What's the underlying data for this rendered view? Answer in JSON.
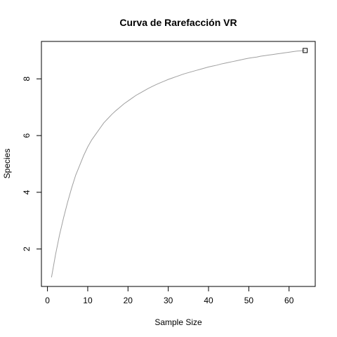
{
  "chart_data": {
    "type": "line",
    "title": "Curva de Rarefacción VR",
    "xlabel": "Sample Size",
    "ylabel": "Species",
    "xlim": [
      -1.5,
      66.5
    ],
    "ylim": [
      0.68,
      9.32
    ],
    "xticks": [
      0,
      10,
      20,
      30,
      40,
      50,
      60
    ],
    "yticks": [
      2,
      4,
      6,
      8
    ],
    "grid": false,
    "line_color": "#a0a0a0",
    "series": [
      {
        "x": [
          1,
          2,
          3,
          4,
          5,
          6,
          7,
          8,
          9,
          10,
          11,
          12,
          13,
          14,
          15,
          16,
          17,
          18,
          19,
          20,
          21,
          22,
          23,
          24,
          25,
          26,
          27,
          28,
          29,
          30,
          31,
          32,
          33,
          34,
          35,
          36,
          37,
          38,
          39,
          40,
          41,
          42,
          43,
          44,
          45,
          46,
          47,
          48,
          49,
          50,
          51,
          52,
          53,
          54,
          55,
          56,
          57,
          58,
          59,
          60,
          61,
          62,
          63,
          64
        ],
        "y": [
          1.0,
          1.8,
          2.5,
          3.1,
          3.65,
          4.15,
          4.6,
          4.95,
          5.3,
          5.6,
          5.85,
          6.05,
          6.25,
          6.45,
          6.6,
          6.75,
          6.88,
          7.0,
          7.12,
          7.22,
          7.32,
          7.42,
          7.5,
          7.58,
          7.66,
          7.73,
          7.8,
          7.86,
          7.92,
          7.98,
          8.03,
          8.08,
          8.13,
          8.18,
          8.22,
          8.26,
          8.3,
          8.34,
          8.38,
          8.42,
          8.45,
          8.48,
          8.52,
          8.55,
          8.58,
          8.61,
          8.64,
          8.67,
          8.7,
          8.73,
          8.75,
          8.77,
          8.8,
          8.82,
          8.84,
          8.86,
          8.88,
          8.9,
          8.92,
          8.94,
          8.96,
          8.98,
          8.99,
          9.0
        ]
      }
    ],
    "end_marker": {
      "x": 64,
      "y": 9.0,
      "shape": "square"
    }
  }
}
